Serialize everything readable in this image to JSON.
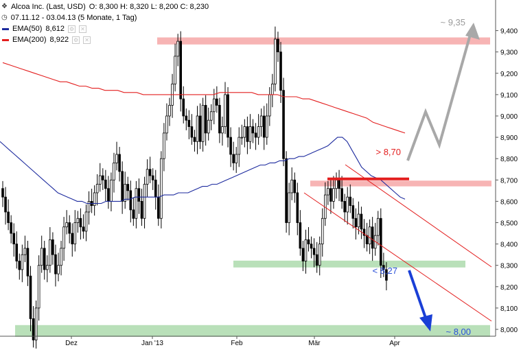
{
  "header": {
    "instrument": "Alcoa Inc. (Last, USD)",
    "ohlc": "O: 8,300  H: 8,320  L: 8,200  C: 8,230",
    "range": "07.11.12 - 03.04.13 (5 Monate, 1 Tag)",
    "ema50_label": "EMA(50)",
    "ema50_value": "8,612",
    "ema200_label": "EMA(200)",
    "ema200_value": "8,922",
    "ema50_color": "#1c2a9e",
    "ema200_color": "#e31e1e"
  },
  "chart_data": {
    "type": "candlestick",
    "x_labels": [
      "Dez",
      "Jan '13",
      "Feb",
      "Mär",
      "Apr"
    ],
    "y_ticks": [
      "8,000",
      "8,100",
      "8,200",
      "8,300",
      "8,400",
      "8,500",
      "8,600",
      "8,700",
      "8,800",
      "8,900",
      "9,000",
      "9,100",
      "9,200",
      "9,300",
      "9,400"
    ],
    "ylim": [
      7.97,
      9.42
    ],
    "grid": false,
    "candle_color": "#000000",
    "closes": [
      8.62,
      8.55,
      8.5,
      8.45,
      8.4,
      8.32,
      8.28,
      8.35,
      8.38,
      8.25,
      8.05,
      7.95,
      8.1,
      8.3,
      8.38,
      8.28,
      8.3,
      8.42,
      8.35,
      8.26,
      8.3,
      8.38,
      8.48,
      8.5,
      8.45,
      8.4,
      8.5,
      8.52,
      8.48,
      8.46,
      8.55,
      8.6,
      8.58,
      8.64,
      8.68,
      8.72,
      8.7,
      8.66,
      8.6,
      8.7,
      8.78,
      8.82,
      8.74,
      8.6,
      8.68,
      8.65,
      8.56,
      8.52,
      8.66,
      8.6,
      8.52,
      8.68,
      8.75,
      8.72,
      8.7,
      8.62,
      8.52,
      8.8,
      8.92,
      9.0,
      9.05,
      9.15,
      9.28,
      9.35,
      9.08,
      9.0,
      8.98,
      8.95,
      8.9,
      8.88,
      9.0,
      8.88,
      9.05,
      8.92,
      8.98,
      9.02,
      9.08,
      9.05,
      8.92,
      8.95,
      9.1,
      8.9,
      8.82,
      8.78,
      8.82,
      8.9,
      8.9,
      8.95,
      8.88,
      8.95,
      8.92,
      8.9,
      8.95,
      9.0,
      8.9,
      9.0,
      9.1,
      9.15,
      9.36,
      9.3,
      9.12,
      8.8,
      8.5,
      8.64,
      8.7,
      8.64,
      8.5,
      8.38,
      8.32,
      8.42,
      8.4,
      8.38,
      8.35,
      8.3,
      8.4,
      8.52,
      8.63,
      8.66,
      8.6,
      8.66,
      8.7,
      8.66,
      8.6,
      8.55,
      8.62,
      8.58,
      8.52,
      8.48,
      8.54,
      8.47,
      8.44,
      8.4,
      8.48,
      8.38,
      8.44,
      8.52,
      8.3,
      8.28,
      8.23
    ],
    "ema50": [
      8.88,
      8.86,
      8.84,
      8.82,
      8.8,
      8.78,
      8.76,
      8.74,
      8.72,
      8.7,
      8.68,
      8.66,
      8.64,
      8.63,
      8.62,
      8.61,
      8.6,
      8.6,
      8.59,
      8.59,
      8.59,
      8.59,
      8.6,
      8.6,
      8.6,
      8.6,
      8.61,
      8.61,
      8.62,
      8.62,
      8.62,
      8.62,
      8.62,
      8.62,
      8.63,
      8.63,
      8.63,
      8.64,
      8.64,
      8.64,
      8.65,
      8.66,
      8.67,
      8.67,
      8.68,
      8.68,
      8.69,
      8.7,
      8.71,
      8.72,
      8.73,
      8.74,
      8.75,
      8.76,
      8.77,
      8.77,
      8.78,
      8.78,
      8.79,
      8.79,
      8.8,
      8.8,
      8.81,
      8.81,
      8.82,
      8.83,
      8.84,
      8.85,
      8.86,
      8.88,
      8.9,
      8.9,
      8.88,
      8.84,
      8.8,
      8.76,
      8.74,
      8.72,
      8.71,
      8.7,
      8.68,
      8.66,
      8.64,
      8.62,
      8.61
    ],
    "ema200": [
      9.25,
      9.24,
      9.23,
      9.22,
      9.21,
      9.2,
      9.19,
      9.18,
      9.17,
      9.16,
      9.16,
      9.15,
      9.14,
      9.14,
      9.13,
      9.13,
      9.12,
      9.12,
      9.12,
      9.11,
      9.11,
      9.11,
      9.1,
      9.1,
      9.1,
      9.1,
      9.1,
      9.1,
      9.1,
      9.1,
      9.1,
      9.1,
      9.1,
      9.1,
      9.11,
      9.11,
      9.11,
      9.11,
      9.11,
      9.11,
      9.1,
      9.1,
      9.1,
      9.1,
      9.09,
      9.09,
      9.09,
      9.08,
      9.08,
      9.07,
      9.06,
      9.05,
      9.04,
      9.03,
      9.02,
      9.01,
      9.0,
      8.99,
      8.97,
      8.96,
      8.95,
      8.94,
      8.93,
      8.92
    ]
  },
  "annotations": {
    "target_up": "~ 9,35",
    "breakout_level": "> 8,70",
    "breakdown_level": "< 8,27",
    "target_down": "~ 8,00",
    "resistance_color": "#f7b4b4",
    "support_color": "#b9e0b9",
    "up_arrow_color": "#a8a8a8",
    "down_arrow_color": "#1a3fd6",
    "label_color": "#2a4fd8",
    "breakout_color": "#e31e1e",
    "channel_color": "#e31e1e"
  }
}
